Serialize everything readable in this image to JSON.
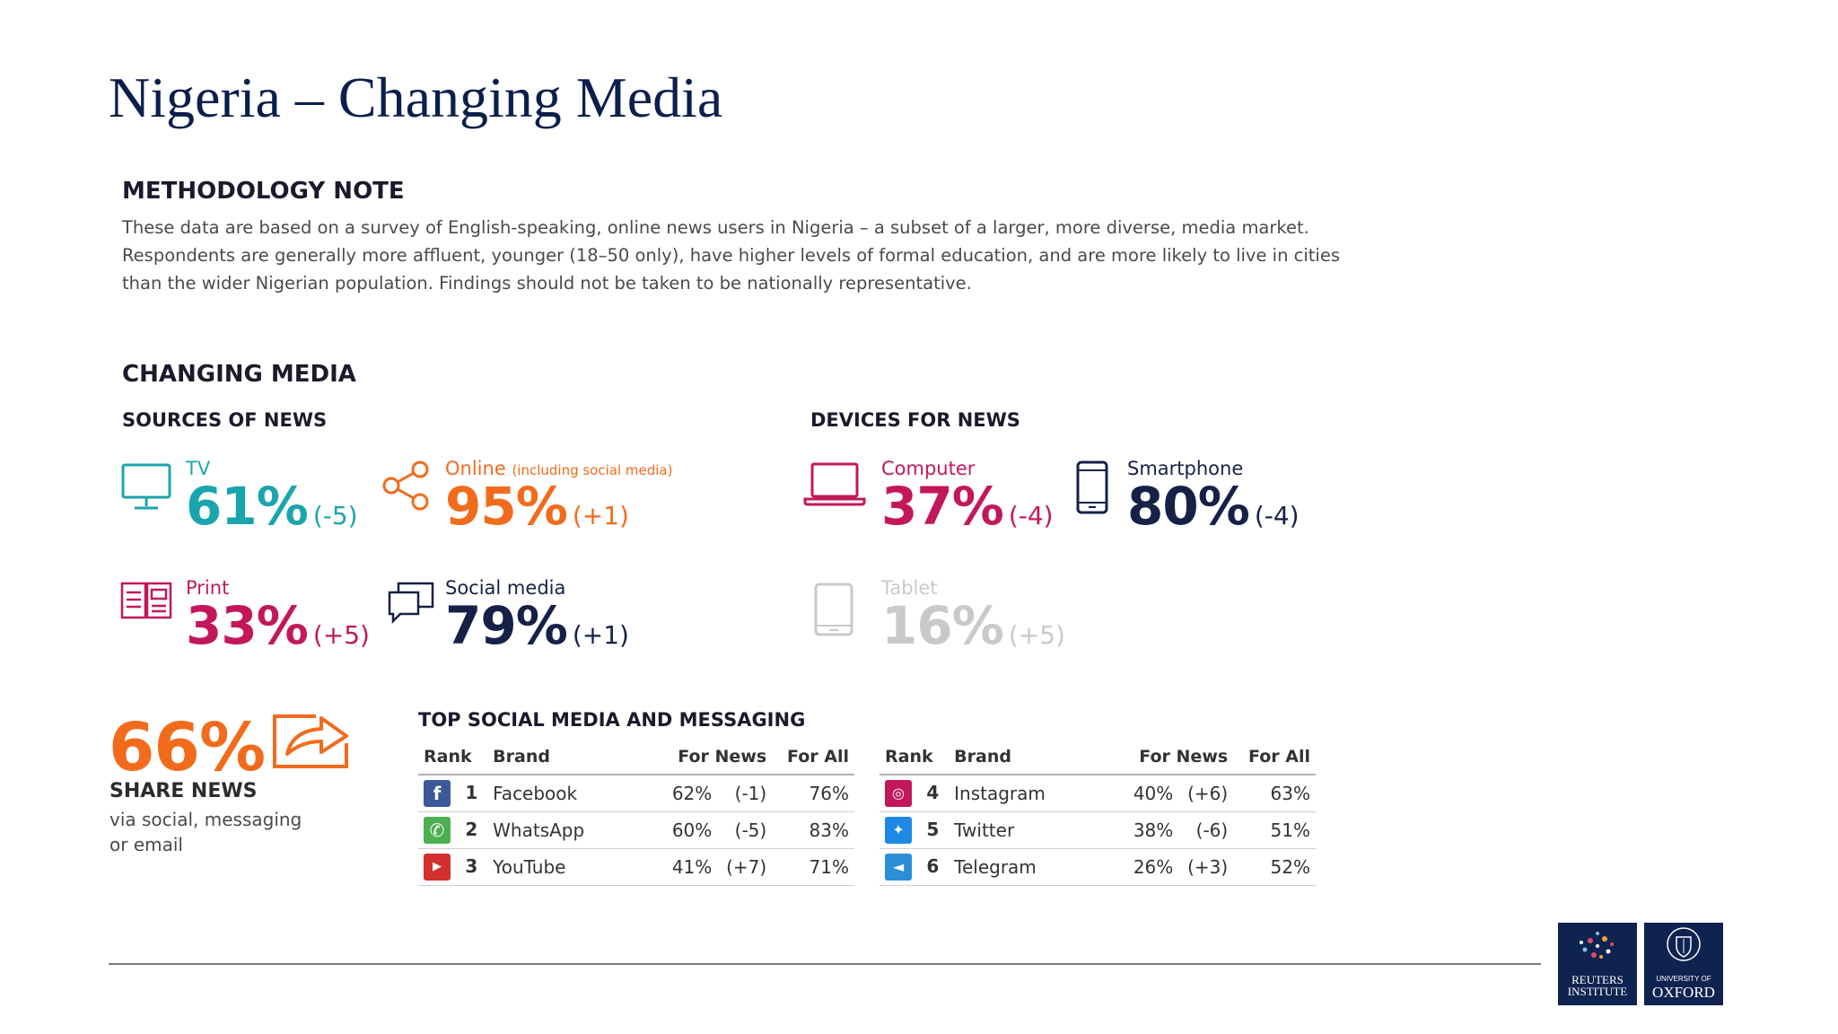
{
  "title": "Nigeria – Changing Media",
  "methodology": {
    "heading": "METHODOLOGY NOTE",
    "lines": [
      "These data are based on a survey of English-speaking, online news users in Nigeria – a subset of a larger, more diverse, media market.",
      "Respondents are generally more affluent, younger (18–50 only), have higher levels of formal education, and are more likely to live in cities",
      "than the wider Nigerian population. Findings should not be taken to be nationally representative."
    ]
  },
  "changing_media": {
    "heading": "CHANGING MEDIA",
    "sources_heading": "SOURCES OF NEWS",
    "devices_heading": "DEVICES FOR NEWS",
    "sources": [
      {
        "label": "TV",
        "value": "61%",
        "change": "(-5)",
        "color": "#1aa5ad",
        "icon": "tv-icon"
      },
      {
        "label": "Online",
        "note": "(including social media)",
        "value": "95%",
        "change": "(+1)",
        "color": "#f26b1d",
        "icon": "share-nodes-icon"
      },
      {
        "label": "Print",
        "value": "33%",
        "change": "(+5)",
        "color": "#c2185b",
        "icon": "newspaper-icon"
      },
      {
        "label": "Social media",
        "value": "79%",
        "change": "(+1)",
        "color": "#152147",
        "icon": "speech-bubbles-icon"
      }
    ],
    "devices": [
      {
        "label": "Computer",
        "value": "37%",
        "change": "(-4)",
        "color": "#c2185b",
        "icon": "laptop-icon"
      },
      {
        "label": "Smartphone",
        "value": "80%",
        "change": "(-4)",
        "color": "#152147",
        "icon": "smartphone-icon"
      },
      {
        "label": "Tablet",
        "value": "16%",
        "change": "(+5)",
        "color": "#c9c9c9",
        "icon": "tablet-icon"
      }
    ]
  },
  "share": {
    "value": "66%",
    "label": "SHARE NEWS",
    "sub_line1": "via social, messaging",
    "sub_line2": "or email",
    "icon": "share-arrow-icon"
  },
  "social_table": {
    "heading": "TOP SOCIAL MEDIA AND MESSAGING",
    "columns": [
      "Rank",
      "Brand",
      "For News",
      "For All"
    ],
    "left_rows": [
      {
        "rank": "1",
        "brand": "Facebook",
        "for_news": "62%",
        "change": "(-1)",
        "for_all": "76%",
        "icon": "facebook-icon",
        "color": "#3b5998"
      },
      {
        "rank": "2",
        "brand": "WhatsApp",
        "for_news": "60%",
        "change": "(-5)",
        "for_all": "83%",
        "icon": "whatsapp-icon",
        "color": "#4caf50"
      },
      {
        "rank": "3",
        "brand": "YouTube",
        "for_news": "41%",
        "change": "(+7)",
        "for_all": "71%",
        "icon": "youtube-icon",
        "color": "#d32f2f"
      }
    ],
    "right_rows": [
      {
        "rank": "4",
        "brand": "Instagram",
        "for_news": "40%",
        "change": "(+6)",
        "for_all": "63%",
        "icon": "instagram-icon",
        "color": "#c2185b"
      },
      {
        "rank": "5",
        "brand": "Twitter",
        "for_news": "38%",
        "change": "(-6)",
        "for_all": "51%",
        "icon": "twitter-icon",
        "color": "#1e88e5"
      },
      {
        "rank": "6",
        "brand": "Telegram",
        "for_news": "26%",
        "change": "(+3)",
        "for_all": "52%",
        "icon": "telegram-icon",
        "color": "#2a8fd6"
      }
    ]
  },
  "logos": {
    "reuters_line1": "REUTERS",
    "reuters_line2": "INSTITUTE",
    "oxford_line1": "UNIVERSITY OF",
    "oxford_line2": "OXFORD"
  }
}
